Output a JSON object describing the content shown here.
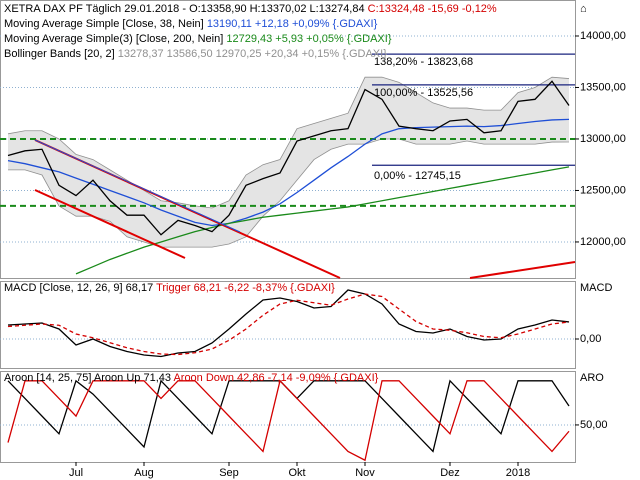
{
  "chart_data": [
    {
      "type": "line",
      "title": "XETRA DAX PF Täglich",
      "info": [
        {
          "text": "29.01.2018 - O:13358,90 H:13370,02 L:13274,84",
          "color": "#000000"
        },
        {
          "text": "C:13324,48 -15,69 -0,12%",
          "color": "#d40000"
        }
      ],
      "color": "#000000",
      "values": [
        12840,
        12885,
        12900,
        12550,
        12450,
        12600,
        12400,
        12260,
        12260,
        12070,
        12210,
        12160,
        12100,
        12260,
        12550,
        12615,
        12670,
        12980,
        13030,
        13080,
        13100,
        13480,
        13385,
        13125,
        13100,
        13080,
        13175,
        13190,
        13060,
        13080,
        13365,
        13385,
        13560,
        13324.48
      ],
      "series": [
        {
          "name": "Moving Average Simple [Close, 38, Nein]",
          "stats": "13190,11 +12,18 +0,09% {.GDAXI}",
          "color": "#1f4fd6",
          "values": [
            12790,
            12760,
            12720,
            12680,
            12620,
            12560,
            12500,
            12440,
            12380,
            12310,
            12250,
            12190,
            12160,
            12180,
            12230,
            12290,
            12370,
            12480,
            12600,
            12720,
            12830,
            12950,
            13050,
            13100,
            13110,
            13115,
            13120,
            13125,
            13120,
            13130,
            13150,
            13170,
            13185,
            13190.11
          ]
        },
        {
          "name": "Moving Average Simple(3) [Close, 200, Nein]",
          "stats": "12729,43 +5,93 +0,05% {.GDAXI}",
          "color": "#1a8a1a",
          "values": [
            null,
            null,
            null,
            null,
            11690,
            11760,
            11830,
            11890,
            11950,
            12000,
            12050,
            12100,
            12140,
            12180,
            12210,
            12240,
            12260,
            12280,
            12300,
            12320,
            12340,
            12370,
            12400,
            12430,
            12460,
            12490,
            12520,
            12550,
            12580,
            12610,
            12640,
            12670,
            12700,
            12729.43
          ]
        }
      ],
      "bands": {
        "name": "Bollinger Bands [20, 2]",
        "stats": "13278,37 13586,50 12970,25 +20,34 +0,15% {.GDAXI}",
        "color": "#909090",
        "fill": "#e4e4e4",
        "upper": [
          13050,
          13080,
          13080,
          13000,
          12850,
          12800,
          12700,
          12600,
          12500,
          12400,
          12380,
          12350,
          12330,
          12400,
          12650,
          12750,
          12800,
          13100,
          13150,
          13200,
          13250,
          13600,
          13600,
          13550,
          13450,
          13350,
          13300,
          13300,
          13280,
          13280,
          13450,
          13500,
          13600,
          13586.5
        ],
        "lower": [
          12700,
          12700,
          12650,
          12350,
          12250,
          12250,
          12200,
          12050,
          12000,
          11950,
          11950,
          11950,
          11950,
          11980,
          12050,
          12250,
          12400,
          12600,
          12800,
          12900,
          12950,
          12950,
          13000,
          13000,
          12950,
          12950,
          12950,
          12980,
          12950,
          12950,
          12950,
          12950,
          12970,
          12970.25
        ]
      },
      "levels": [
        {
          "value": 13823.68,
          "label": "138,20% - 13823,68"
        },
        {
          "value": 13525.56,
          "label": "100,00% - 13525,56"
        },
        {
          "value": 12745.15,
          "label": "0,00% - 12745,15"
        }
      ],
      "level_color": "#1a237e",
      "support": [
        13000,
        12350
      ],
      "support_color": "#1a8a1a",
      "ylim": [
        11650,
        14330
      ],
      "yticks": [
        {
          "value": 12000,
          "label": "12000,00"
        },
        {
          "value": 12500,
          "label": "12500,00"
        },
        {
          "value": 13000,
          "label": "13000,00"
        },
        {
          "value": 13500,
          "label": "13500,00"
        },
        {
          "value": 14000,
          "label": "14000,00"
        }
      ]
    },
    {
      "type": "line",
      "title": "MACD [Close, 12, 26, 9]",
      "axis_label": "MACD",
      "series": [
        {
          "name": "",
          "stats": "68,17",
          "color": "#000000",
          "dash": false,
          "values": [
            56,
            60,
            64,
            40,
            -24,
            0,
            -30,
            -50,
            -64,
            -70,
            -56,
            -50,
            -16,
            40,
            100,
            156,
            164,
            150,
            124,
            130,
            196,
            180,
            140,
            60,
            30,
            24,
            40,
            10,
            -4,
            0,
            40,
            56,
            76,
            68.17
          ]
        },
        {
          "name": "Trigger",
          "stats": "68,21 -6,22 -8,37% {.GDAXI}",
          "color": "#d40000",
          "dash": true,
          "values": [
            50,
            55,
            60,
            55,
            20,
            5,
            -15,
            -35,
            -50,
            -60,
            -62,
            -55,
            -40,
            -5,
            40,
            95,
            140,
            155,
            145,
            135,
            160,
            180,
            170,
            120,
            70,
            40,
            35,
            25,
            10,
            5,
            20,
            40,
            60,
            68.21
          ]
        }
      ],
      "ylim": [
        -116,
        228
      ],
      "yticks": [
        {
          "value": 0,
          "label": "0,00"
        }
      ]
    },
    {
      "type": "line",
      "title": "Aroon [14, 25, 75]",
      "axis_label": "ARO",
      "categories": [
        null,
        null,
        null,
        null,
        "Jul",
        null,
        null,
        null,
        "Aug",
        null,
        null,
        null,
        null,
        "Sep",
        null,
        null,
        null,
        "Okt",
        null,
        null,
        null,
        "Nov",
        null,
        null,
        null,
        null,
        "Dez",
        null,
        null,
        null,
        "2018",
        null,
        null,
        null
      ],
      "series": [
        {
          "name": "Aroon Up",
          "stats": "71,43",
          "color": "#000000",
          "dash": false,
          "values": [
            100,
            80,
            60,
            40,
            100,
            85,
            65,
            45,
            25,
            100,
            80,
            60,
            40,
            100,
            100,
            100,
            100,
            80,
            100,
            100,
            100,
            100,
            80,
            60,
            40,
            20,
            100,
            80,
            60,
            40,
            100,
            100,
            100,
            71.43
          ]
        },
        {
          "name": "Aroon Down",
          "stats": "42,86 -7,14 -9,09% {.GDAXI}",
          "color": "#d40000",
          "dash": false,
          "values": [
            30,
            100,
            100,
            80,
            60,
            100,
            100,
            100,
            100,
            80,
            100,
            100,
            80,
            60,
            40,
            20,
            100,
            80,
            60,
            40,
            20,
            10,
            100,
            100,
            80,
            60,
            40,
            100,
            100,
            80,
            60,
            40,
            20,
            42.86
          ]
        }
      ],
      "ylim": [
        8,
        110
      ],
      "yticks": [
        {
          "value": 50,
          "label": "50,00"
        }
      ]
    }
  ]
}
